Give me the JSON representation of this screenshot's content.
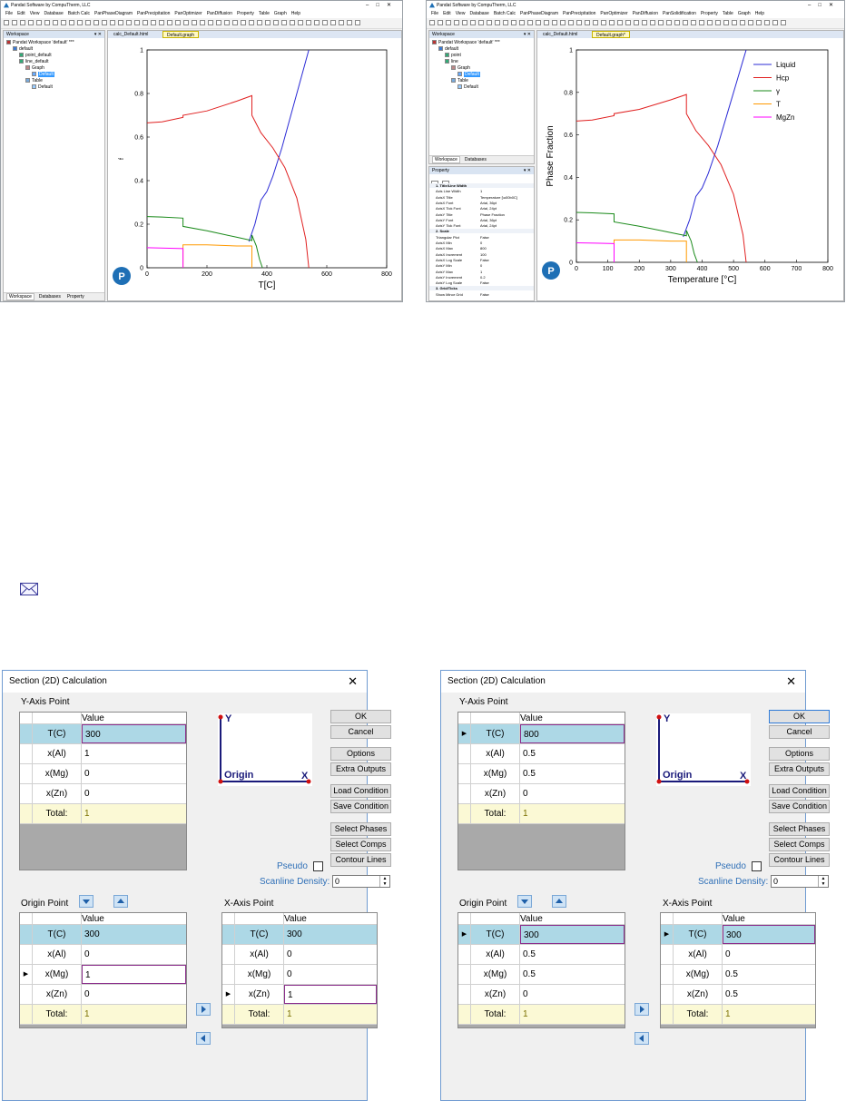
{
  "colors": {
    "liquid": "#2b2bd6",
    "hcp": "#e02020",
    "gamma": "#1a8a1a",
    "tau": "#ff9900",
    "mgzn": "#ff00ff",
    "selected_row": "#add8e6",
    "total_row": "#fbf9d5",
    "accent": "#2e6fb7"
  },
  "pandat": [
    {
      "title": "Pandat Software by CompuTherm, LLC",
      "menu": [
        "File",
        "Edit",
        "View",
        "Database",
        "Batch Calc",
        "PanPhaseDiagram",
        "PanPrecipitation",
        "PanOptimizer",
        "PanDiffusion",
        "Property",
        "Table",
        "Graph",
        "Help"
      ],
      "workspace": {
        "header": "Workspace",
        "pin": "▾ ✕",
        "tree": [
          "Pandat Workspace 'default' ***",
          "default",
          "point_default",
          "line_default",
          "Graph",
          "Default",
          "Table",
          "Default"
        ],
        "bottom_tabs": [
          "Workspace",
          "Databases",
          "Property"
        ]
      },
      "doc_tabs": [
        "calc_Default.html",
        "Default.graph"
      ],
      "chart_data": {
        "type": "line",
        "title": "",
        "xlabel": "T[C]",
        "ylabel": "f",
        "xlim": [
          0,
          800
        ],
        "ylim": [
          0,
          1
        ],
        "x_ticks": [
          "0",
          "200",
          "400",
          "600",
          "800"
        ],
        "y_ticks": [
          "0",
          "0.2",
          "0.4",
          "0.6",
          "0.8",
          "1"
        ],
        "legend": false,
        "series": [
          {
            "key": "liquid",
            "x": [
              340,
              360,
              380,
              400,
              420,
              450,
              480,
              510,
              530,
              540
            ],
            "y": [
              0.12,
              0.2,
              0.31,
              0.35,
              0.42,
              0.55,
              0.7,
              0.85,
              0.95,
              1.0
            ]
          },
          {
            "key": "hcp",
            "x": [
              0,
              50,
              120,
              120,
              200,
              300,
              350,
              350,
              380,
              420,
              460,
              500,
              530,
              540
            ],
            "y": [
              0.665,
              0.67,
              0.69,
              0.7,
              0.72,
              0.765,
              0.79,
              0.7,
              0.62,
              0.55,
              0.46,
              0.32,
              0.13,
              0.0
            ]
          },
          {
            "key": "gamma",
            "x": [
              0,
              50,
              120,
              120,
              200,
              300,
              350,
              350,
              365,
              375,
              385
            ],
            "y": [
              0.235,
              0.233,
              0.228,
              0.19,
              0.17,
              0.14,
              0.125,
              0.15,
              0.1,
              0.04,
              0.0
            ]
          },
          {
            "key": "tau",
            "x": [
              120,
              120,
              200,
              300,
              350,
              350
            ],
            "y": [
              0.0,
              0.105,
              0.105,
              0.1,
              0.1,
              0.0
            ]
          },
          {
            "key": "mgzn",
            "x": [
              0,
              60,
              120,
              120
            ],
            "y": [
              0.092,
              0.09,
              0.088,
              0.0
            ]
          }
        ]
      }
    },
    {
      "title": "Pandat Software by CompuTherm, LLC",
      "menu": [
        "File",
        "Edit",
        "View",
        "Database",
        "Batch Calc",
        "PanPhaseDiagram",
        "PanPrecipitation",
        "PanOptimizer",
        "PanDiffusion",
        "PanSolidification",
        "Property",
        "Table",
        "Graph",
        "Help"
      ],
      "workspace": {
        "header": "Workspace",
        "pin": "▾ ✕",
        "tree": [
          "Pandat Workspace 'default' ***",
          "default",
          "point",
          "line",
          "Graph",
          "Default",
          "Table",
          "Default"
        ],
        "bottom_tabs": [
          "Workspace",
          "Databases"
        ]
      },
      "property": {
        "header": "Property",
        "rows": [
          {
            "k": "1. Title/Line Width",
            "v": "",
            "sec": true
          },
          {
            "k": "Axis Line Width",
            "v": "1"
          },
          {
            "k": "AxisX Title",
            "v": "Temperature [\\u00b0C]"
          },
          {
            "k": "AxisX Font",
            "v": "Arial, 36pt"
          },
          {
            "k": "AxisX Tick Font",
            "v": "Arial, 24pt"
          },
          {
            "k": "AxisY Title",
            "v": "Phase Fraction"
          },
          {
            "k": "AxisY Font",
            "v": "Arial, 36pt"
          },
          {
            "k": "AxisY Tick Font",
            "v": "Arial, 24pt"
          },
          {
            "k": "2. Scale",
            "v": "",
            "sec": true
          },
          {
            "k": "Triangular Plot",
            "v": "False"
          },
          {
            "k": "AxisX Min",
            "v": "0"
          },
          {
            "k": "AxisX Max",
            "v": "800"
          },
          {
            "k": "AxisX Increment",
            "v": "100"
          },
          {
            "k": "AxisX Log Scale",
            "v": "False"
          },
          {
            "k": "AxisY Min",
            "v": "0"
          },
          {
            "k": "AxisY Max",
            "v": "1"
          },
          {
            "k": "AxisY Increment",
            "v": "0.2"
          },
          {
            "k": "AxisY Log Scale",
            "v": "False"
          },
          {
            "k": "3. Grid/Ticks",
            "v": "",
            "sec": true
          },
          {
            "k": "Show Minor Grid",
            "v": "False"
          }
        ]
      },
      "doc_tabs": [
        "calc_Default.html",
        "Default.graph*"
      ],
      "chart_data": {
        "type": "line",
        "title": "",
        "xlabel": "Temperature [°C]",
        "ylabel": "Phase Fraction",
        "xlim": [
          0,
          800
        ],
        "ylim": [
          0,
          1
        ],
        "x_ticks": [
          "0",
          "100",
          "200",
          "300",
          "400",
          "500",
          "600",
          "700",
          "800"
        ],
        "y_ticks": [
          "0",
          "0.2",
          "0.4",
          "0.6",
          "0.8",
          "1"
        ],
        "legend_position": "top-right",
        "series": [
          {
            "key": "liquid",
            "name": "Liquid",
            "x": [
              340,
              360,
              380,
              400,
              420,
              450,
              480,
              510,
              530,
              540
            ],
            "y": [
              0.12,
              0.2,
              0.31,
              0.35,
              0.42,
              0.55,
              0.7,
              0.85,
              0.95,
              1.0
            ]
          },
          {
            "key": "hcp",
            "name": "Hcp",
            "x": [
              0,
              50,
              120,
              120,
              200,
              300,
              350,
              350,
              380,
              420,
              460,
              500,
              530,
              540
            ],
            "y": [
              0.665,
              0.67,
              0.69,
              0.7,
              0.72,
              0.765,
              0.79,
              0.7,
              0.62,
              0.55,
              0.46,
              0.32,
              0.13,
              0.0
            ]
          },
          {
            "key": "gamma",
            "name": "γ",
            "x": [
              0,
              50,
              120,
              120,
              200,
              300,
              350,
              350,
              365,
              375,
              385
            ],
            "y": [
              0.235,
              0.233,
              0.228,
              0.19,
              0.17,
              0.14,
              0.125,
              0.15,
              0.1,
              0.04,
              0.0
            ]
          },
          {
            "key": "tau",
            "name": "T",
            "x": [
              120,
              120,
              200,
              300,
              350,
              350
            ],
            "y": [
              0.0,
              0.105,
              0.105,
              0.1,
              0.1,
              0.0
            ]
          },
          {
            "key": "mgzn",
            "name": "MgZn",
            "x": [
              0,
              60,
              120,
              120
            ],
            "y": [
              0.092,
              0.09,
              0.088,
              0.0
            ]
          }
        ]
      }
    }
  ],
  "dialogs": [
    {
      "title": "Section (2D) Calculation",
      "y_axis_label": "Y-Axis Point",
      "origin_label": "Origin Point",
      "x_axis_label": "X-Axis Point",
      "col_header": "Value",
      "y_rows": [
        {
          "k": "T(C)",
          "v": "300",
          "sel": true,
          "edit": true
        },
        {
          "k": "x(Al)",
          "v": "1"
        },
        {
          "k": "x(Mg)",
          "v": "0"
        },
        {
          "k": "x(Zn)",
          "v": "0"
        },
        {
          "k": "Total:",
          "v": "1",
          "total": true
        }
      ],
      "o_rows": [
        {
          "k": "T(C)",
          "v": "300",
          "sel": true
        },
        {
          "k": "x(Al)",
          "v": "0"
        },
        {
          "k": "x(Mg)",
          "v": "1",
          "marker": true,
          "edit": true
        },
        {
          "k": "x(Zn)",
          "v": "0"
        },
        {
          "k": "Total:",
          "v": "1",
          "total": true
        }
      ],
      "x_rows": [
        {
          "k": "T(C)",
          "v": "300",
          "sel": true
        },
        {
          "k": "x(Al)",
          "v": "0"
        },
        {
          "k": "x(Mg)",
          "v": "0"
        },
        {
          "k": "x(Zn)",
          "v": "1",
          "marker": true,
          "edit": true
        },
        {
          "k": "Total:",
          "v": "1",
          "total": true
        }
      ],
      "buttons": [
        "OK",
        "Cancel",
        "Options",
        "Extra Outputs",
        "Load Condition",
        "Save Condition",
        "Select Phases",
        "Select Comps",
        "Contour Lines"
      ],
      "pseudo": "Pseudo",
      "scanline": "Scanline Density:",
      "scanline_value": "0",
      "axis_y": "Y",
      "axis_x": "X",
      "axis_origin": "Origin"
    },
    {
      "title": "Section (2D) Calculation",
      "y_axis_label": "Y-Axis Point",
      "origin_label": "Origin Point",
      "x_axis_label": "X-Axis Point",
      "col_header": "Value",
      "y_rows": [
        {
          "k": "T(C)",
          "v": "800",
          "sel": true,
          "marker": true,
          "edit": true
        },
        {
          "k": "x(Al)",
          "v": "0.5"
        },
        {
          "k": "x(Mg)",
          "v": "0.5"
        },
        {
          "k": "x(Zn)",
          "v": "0"
        },
        {
          "k": "Total:",
          "v": "1",
          "total": true
        }
      ],
      "o_rows": [
        {
          "k": "T(C)",
          "v": "300",
          "sel": true,
          "marker": true,
          "edit": true
        },
        {
          "k": "x(Al)",
          "v": "0.5"
        },
        {
          "k": "x(Mg)",
          "v": "0.5"
        },
        {
          "k": "x(Zn)",
          "v": "0"
        },
        {
          "k": "Total:",
          "v": "1",
          "total": true
        }
      ],
      "x_rows": [
        {
          "k": "T(C)",
          "v": "300",
          "sel": true,
          "marker": true,
          "edit": true
        },
        {
          "k": "x(Al)",
          "v": "0"
        },
        {
          "k": "x(Mg)",
          "v": "0.5"
        },
        {
          "k": "x(Zn)",
          "v": "0.5"
        },
        {
          "k": "Total:",
          "v": "1",
          "total": true
        }
      ],
      "buttons": [
        "OK",
        "Cancel",
        "Options",
        "Extra Outputs",
        "Load Condition",
        "Save Condition",
        "Select Phases",
        "Select Comps",
        "Contour Lines"
      ],
      "pseudo": "Pseudo",
      "scanline": "Scanline Density:",
      "scanline_value": "0",
      "axis_y": "Y",
      "axis_x": "X",
      "axis_origin": "Origin"
    }
  ]
}
